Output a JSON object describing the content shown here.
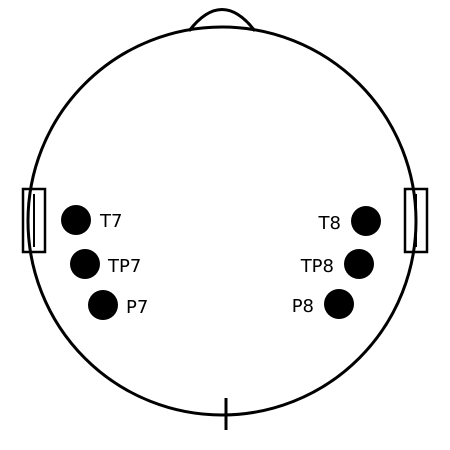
{
  "colors": {
    "outline": "#000000",
    "electrode": "#000000",
    "background": "#ffffff"
  },
  "electrodes": {
    "t7": "T7",
    "tp7": "TP7",
    "p7": "P7",
    "t8": "T8",
    "tp8": "TP8",
    "p8": "P8"
  }
}
